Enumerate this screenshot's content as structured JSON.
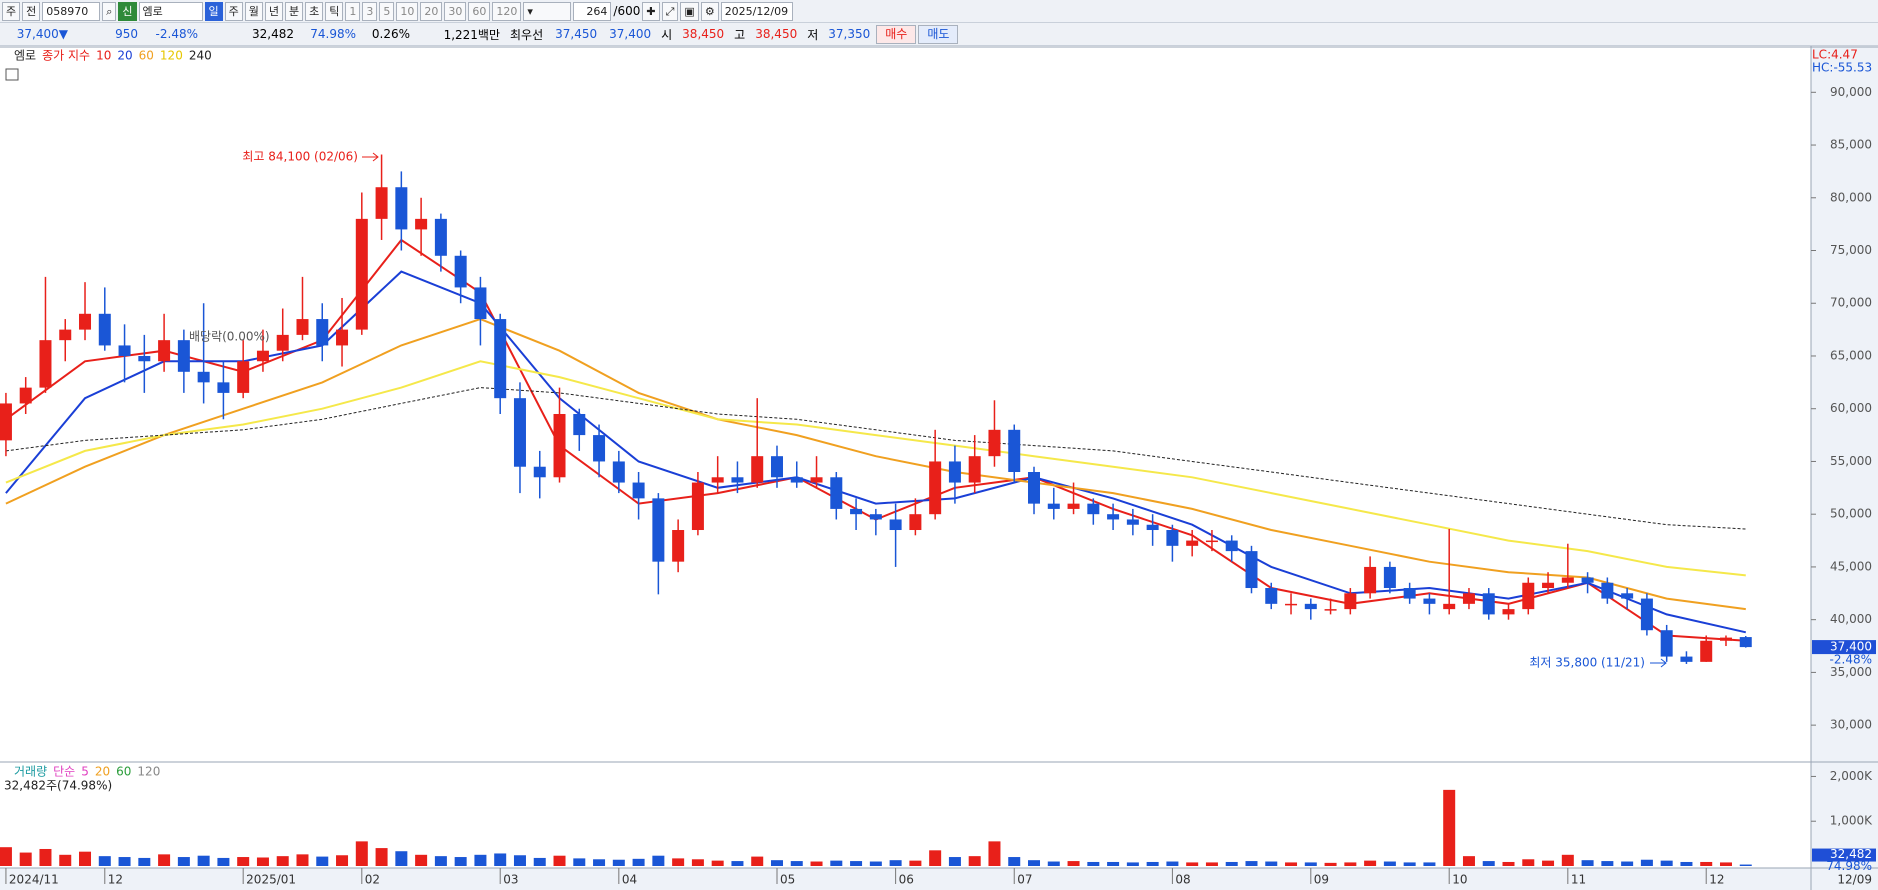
{
  "toolbar": {
    "market": "주",
    "code_label": "전",
    "code": "058970",
    "tag": "신",
    "name": "엠로",
    "periods": [
      "일",
      "주",
      "월",
      "년",
      "분",
      "초",
      "틱"
    ],
    "intervals": [
      "1",
      "3",
      "5",
      "10",
      "20",
      "30",
      "60",
      "120"
    ],
    "count": "264",
    "max": "/600",
    "date": "2025/12/09"
  },
  "quote": {
    "price": "37,400",
    "sign": "▼",
    "change": "950",
    "rate": "-2.48%",
    "volume": "32,482",
    "volume_ratio": "74.98%",
    "turnover": "0.26%",
    "amount": "1,221백만",
    "best_label": "최우선",
    "ask": "37,450",
    "bid": "37,400",
    "open_label": "시",
    "open": "38,450",
    "high_label": "고",
    "high": "38,450",
    "low_label": "저",
    "low": "37,350",
    "buy": "매수",
    "sell": "매도"
  },
  "chart_data": [
    {
      "type": "candlestick",
      "symbol": "엠로",
      "legend_title": "종가 지수",
      "up_color": "#e8201a",
      "down_color": "#1a56d6",
      "open": [
        57000,
        60500,
        62000,
        66500,
        67500,
        69000,
        66000,
        65000,
        64500,
        66500,
        63500,
        62500,
        61500,
        64500,
        65500,
        67000,
        68500,
        66000,
        67500,
        78000,
        81000,
        77000,
        78000,
        74500,
        71500,
        68500,
        61000,
        54500,
        53500,
        59500,
        57500,
        55000,
        53000,
        51500,
        45500,
        48500,
        53000,
        53500,
        53000,
        55500,
        53500,
        53000,
        53500,
        50500,
        50000,
        49500,
        48500,
        50000,
        55000,
        53000,
        55500,
        58000,
        54000,
        51000,
        50500,
        51000,
        50000,
        49500,
        49000,
        48500,
        47000,
        47500,
        47500,
        46500,
        43000,
        41500,
        41500,
        41000,
        41000,
        42500,
        45000,
        43000,
        42000,
        41000,
        41500,
        42500,
        40500,
        41000,
        43000,
        43500,
        44000,
        43500,
        42500,
        42000,
        39000,
        36500,
        36000,
        38000,
        38350
      ],
      "high": [
        61500,
        63000,
        72500,
        68500,
        72000,
        71500,
        68000,
        67000,
        69000,
        67500,
        70000,
        64500,
        66500,
        67500,
        69500,
        72500,
        70000,
        70500,
        80500,
        84100,
        82500,
        80000,
        78500,
        75000,
        72500,
        69000,
        62500,
        56000,
        62000,
        60000,
        58500,
        56000,
        54000,
        52000,
        49500,
        54000,
        55500,
        55000,
        61000,
        56500,
        55000,
        55500,
        54000,
        51500,
        50500,
        51000,
        51500,
        58000,
        56500,
        57500,
        60800,
        58500,
        54500,
        52500,
        53000,
        51500,
        51000,
        50500,
        50000,
        49000,
        48500,
        48500,
        48000,
        47000,
        43500,
        42500,
        42000,
        42000,
        43000,
        46000,
        45500,
        43500,
        42500,
        48600,
        43000,
        43000,
        41500,
        44000,
        44500,
        47200,
        44500,
        44000,
        43000,
        42500,
        39500,
        37000,
        38500,
        38500,
        38450
      ],
      "low": [
        55500,
        59500,
        61500,
        64500,
        66500,
        65500,
        62500,
        61500,
        63500,
        61500,
        60500,
        59000,
        61000,
        63500,
        64500,
        66500,
        64500,
        64000,
        67000,
        76000,
        75000,
        74500,
        73000,
        70000,
        66000,
        59500,
        52000,
        51500,
        53000,
        56000,
        53500,
        52000,
        49500,
        42400,
        44500,
        48000,
        52000,
        52000,
        52500,
        52500,
        52500,
        52500,
        49500,
        48500,
        48000,
        45000,
        48000,
        49500,
        51000,
        52000,
        54500,
        53000,
        50000,
        49500,
        50000,
        49000,
        48500,
        48000,
        47000,
        45500,
        46000,
        46500,
        45500,
        42500,
        41000,
        40500,
        40000,
        40500,
        40500,
        42000,
        42500,
        41500,
        40500,
        40500,
        41000,
        40000,
        40000,
        40500,
        42500,
        43000,
        42500,
        41500,
        41000,
        38500,
        36000,
        35800,
        36000,
        37500,
        37350
      ],
      "close": [
        60500,
        62000,
        66500,
        67500,
        69000,
        66000,
        65000,
        64500,
        66500,
        63500,
        62500,
        61500,
        64500,
        65500,
        67000,
        68500,
        66000,
        67500,
        78000,
        81000,
        77000,
        78000,
        74500,
        71500,
        68500,
        61000,
        54500,
        53500,
        59500,
        57500,
        55000,
        53000,
        51500,
        45500,
        48500,
        53000,
        53500,
        53000,
        55500,
        53500,
        53000,
        53500,
        50500,
        50000,
        49500,
        48500,
        50000,
        55000,
        53000,
        55500,
        58000,
        54000,
        51000,
        50500,
        51000,
        50000,
        49500,
        49000,
        48500,
        47000,
        47500,
        47500,
        46500,
        43000,
        41500,
        41500,
        41000,
        41000,
        42500,
        45000,
        43000,
        42000,
        41500,
        41500,
        42500,
        40500,
        41000,
        43500,
        43500,
        44000,
        43500,
        42000,
        42000,
        39000,
        36500,
        36000,
        38000,
        38300,
        37400
      ],
      "xlim": [
        -0.3,
        91.3
      ],
      "ylim": [
        26600,
        94200
      ],
      "yticks": [
        {
          "value": 30000,
          "label": "30,000"
        },
        {
          "value": 35000,
          "label": "35,000"
        },
        {
          "value": 40000,
          "label": "40,000"
        },
        {
          "value": 45000,
          "label": "45,000"
        },
        {
          "value": 50000,
          "label": "50,000"
        },
        {
          "value": 55000,
          "label": "55,000"
        },
        {
          "value": 60000,
          "label": "60,000"
        },
        {
          "value": 65000,
          "label": "65,000"
        },
        {
          "value": 70000,
          "label": "70,000"
        },
        {
          "value": 75000,
          "label": "75,000"
        },
        {
          "value": 80000,
          "label": "80,000"
        },
        {
          "value": 85000,
          "label": "85,000"
        },
        {
          "value": 90000,
          "label": "90,000"
        }
      ],
      "xticks": [
        {
          "value": 0,
          "label": "2024/11"
        },
        {
          "value": 5,
          "label": "12"
        },
        {
          "value": 12,
          "label": "2025/01"
        },
        {
          "value": 18,
          "label": "02"
        },
        {
          "value": 25,
          "label": "03"
        },
        {
          "value": 31,
          "label": "04"
        },
        {
          "value": 39,
          "label": "05"
        },
        {
          "value": 45,
          "label": "06"
        },
        {
          "value": 51,
          "label": "07"
        },
        {
          "value": 59,
          "label": "08"
        },
        {
          "value": 66,
          "label": "09"
        },
        {
          "value": 73,
          "label": "10"
        },
        {
          "value": 79,
          "label": "11"
        },
        {
          "value": 86,
          "label": "12"
        }
      ],
      "x_end_label": "12/09",
      "ma_x": [
        0,
        4,
        8,
        12,
        16,
        20,
        24,
        28,
        32,
        36,
        40,
        44,
        48,
        52,
        56,
        60,
        64,
        68,
        72,
        76,
        80,
        84,
        88
      ],
      "series": [
        {
          "name": "10",
          "color": "#e8201a",
          "dash": false,
          "values": [
            59000,
            64500,
            65500,
            63500,
            66500,
            76000,
            71000,
            56500,
            51000,
            52000,
            53500,
            49500,
            52500,
            53500,
            50500,
            48000,
            43000,
            41500,
            42500,
            41500,
            43500,
            38500,
            38000
          ]
        },
        {
          "name": "20",
          "color": "#1a3fd6",
          "dash": false,
          "values": [
            52000,
            61000,
            64500,
            64500,
            66000,
            73000,
            70000,
            61000,
            55000,
            52500,
            53500,
            51000,
            51500,
            53500,
            51500,
            49000,
            45000,
            42500,
            43000,
            42000,
            43500,
            40500,
            38800
          ]
        },
        {
          "name": "60",
          "color": "#f0a020",
          "dash": false,
          "values": [
            51000,
            54500,
            57500,
            60000,
            62500,
            66000,
            68500,
            65500,
            61500,
            59000,
            57500,
            55500,
            54000,
            53000,
            52000,
            50500,
            48500,
            47000,
            45500,
            44500,
            44000,
            42000,
            41000
          ]
        },
        {
          "name": "120",
          "color": "#f5e84a",
          "dash": false,
          "values": [
            53000,
            56000,
            57500,
            58500,
            60000,
            62000,
            64500,
            63000,
            61000,
            59000,
            58500,
            57500,
            56500,
            55500,
            54500,
            53500,
            52000,
            50500,
            49000,
            47500,
            46500,
            45000,
            44200
          ]
        },
        {
          "name": "240",
          "color": "#222222",
          "dash": true,
          "values": [
            56000,
            57000,
            57500,
            58000,
            59000,
            60500,
            62000,
            61500,
            60500,
            59500,
            59000,
            58000,
            57000,
            56500,
            56000,
            55000,
            54000,
            53000,
            52000,
            51000,
            50000,
            49000,
            48600
          ]
        }
      ],
      "annotations": [
        {
          "text": "최고 84,100 (02/06)",
          "color": "#e8201a"
        },
        {
          "text": "최저 35,800 (11/21)",
          "color": "#1a56d6"
        },
        {
          "text": "배당락(0.00%)",
          "color": "#555555"
        }
      ],
      "right_labels": [
        {
          "text": "LC:4.47",
          "color": "#e8201a"
        },
        {
          "text": "HC:-55.53",
          "color": "#1a56d6"
        }
      ],
      "last": {
        "value": 37400,
        "label": "37,400"
      },
      "last_change": "-2.48%"
    },
    {
      "type": "bar",
      "legend_title": "거래량",
      "ma_label": "단순",
      "ma": [
        {
          "name": "5",
          "color": "#e040c0"
        },
        {
          "name": "20",
          "color": "#f0a020"
        },
        {
          "name": "60",
          "color": "#2a9d3a"
        },
        {
          "name": "120",
          "color": "#888888"
        }
      ],
      "info": "32,482주(74.98%)",
      "values": [
        420000,
        300000,
        380000,
        250000,
        320000,
        220000,
        200000,
        180000,
        260000,
        200000,
        230000,
        180000,
        200000,
        190000,
        220000,
        260000,
        210000,
        240000,
        550000,
        400000,
        330000,
        250000,
        220000,
        200000,
        250000,
        280000,
        240000,
        180000,
        230000,
        170000,
        150000,
        140000,
        160000,
        230000,
        170000,
        150000,
        120000,
        110000,
        210000,
        130000,
        110000,
        100000,
        120000,
        110000,
        100000,
        130000,
        120000,
        350000,
        200000,
        220000,
        550000,
        200000,
        130000,
        100000,
        110000,
        90000,
        90000,
        80000,
        90000,
        100000,
        80000,
        80000,
        90000,
        110000,
        100000,
        80000,
        80000,
        70000,
        80000,
        120000,
        100000,
        80000,
        80000,
        1700000,
        220000,
        110000,
        90000,
        150000,
        120000,
        250000,
        130000,
        110000,
        100000,
        140000,
        120000,
        90000,
        90000,
        80000,
        32482
      ],
      "ylim": [
        0,
        2300000
      ],
      "yticks": [
        {
          "value": 1000000,
          "label": "1,000K"
        },
        {
          "value": 2000000,
          "label": "2,000K"
        }
      ],
      "last": {
        "value": 32482,
        "label": "32,482"
      },
      "last_ratio": "74.98%"
    }
  ]
}
